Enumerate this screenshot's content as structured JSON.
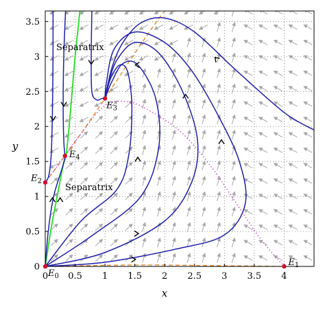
{
  "chart_data": {
    "type": "line",
    "title": "",
    "xlabel": "x",
    "ylabel": "y",
    "xlim": [
      0,
      4.5
    ],
    "ylim": [
      0,
      3.65
    ],
    "grid": true,
    "grid_style": "dotted",
    "xticks": [
      0,
      0.5,
      1,
      1.5,
      2,
      2.5,
      3,
      3.5,
      4
    ],
    "xtick_labels": [
      "0",
      "0.5",
      "1",
      "1.5",
      "2",
      "2.5",
      "3",
      "3.5",
      "4"
    ],
    "yticks": [
      0,
      0.5,
      1,
      1.5,
      2,
      2.5,
      3,
      3.5
    ],
    "ytick_labels": [
      "0",
      "0.5",
      "1",
      "1.5",
      "2",
      "2.5",
      "3",
      "3.5"
    ],
    "colors": {
      "trajectory": "#1f1fa8",
      "separatrix": "#33dd33",
      "nullcline_dashed": "#e08a2a",
      "nullcline_dotted": "#cc44cc",
      "vector_field": "#a8a8a8",
      "equilibrium": "#d0102a"
    },
    "equilibria": [
      {
        "name": "E",
        "sub": "0",
        "x": 0,
        "y": 0
      },
      {
        "name": "E",
        "sub": "1",
        "x": 4,
        "y": 0
      },
      {
        "name": "E",
        "sub": "2",
        "x": 0,
        "y": 1.2
      },
      {
        "name": "E",
        "sub": "3",
        "x": 1.0,
        "y": 2.4
      },
      {
        "name": "E",
        "sub": "4",
        "x": 0.33,
        "y": 1.58
      }
    ],
    "annotations": [
      "Separatrix",
      "Separatrix"
    ],
    "series": [
      {
        "role": "nullcline-dashed",
        "points": [
          [
            0,
            1.2
          ],
          [
            0.33,
            1.58
          ],
          [
            0.6,
            1.9
          ],
          [
            1.0,
            2.4
          ],
          [
            1.4,
            2.92
          ],
          [
            1.8,
            3.42
          ],
          [
            2.0,
            3.65
          ]
        ]
      },
      {
        "role": "nullcline-dotted",
        "points": [
          [
            0,
            1.2
          ],
          [
            0.3,
            1.55
          ],
          [
            0.6,
            1.9
          ],
          [
            1.0,
            2.3
          ],
          [
            1.4,
            2.35
          ],
          [
            1.8,
            2.2
          ],
          [
            2.3,
            1.9
          ],
          [
            2.8,
            1.4
          ],
          [
            3.2,
            0.9
          ],
          [
            3.6,
            0.4
          ],
          [
            4.0,
            0.0
          ]
        ]
      },
      {
        "role": "separatrix",
        "points": [
          [
            0,
            0
          ],
          [
            0.1,
            0.55
          ],
          [
            0.2,
            1.0
          ],
          [
            0.3,
            1.45
          ],
          [
            0.35,
            1.6
          ],
          [
            0.4,
            2.0
          ],
          [
            0.45,
            2.5
          ],
          [
            0.5,
            3.0
          ],
          [
            0.55,
            3.4
          ],
          [
            0.58,
            3.65
          ]
        ]
      },
      {
        "role": "axis-trajectory",
        "points": [
          [
            0,
            0
          ],
          [
            1.5,
            0.02
          ],
          [
            3.0,
            0.01
          ],
          [
            4.0,
            0.0
          ]
        ]
      },
      {
        "role": "trajectory-1",
        "points": [
          [
            0,
            0
          ],
          [
            1.0,
            0.06
          ],
          [
            2.2,
            0.25
          ],
          [
            3.0,
            0.45
          ],
          [
            3.35,
            0.9
          ],
          [
            3.25,
            1.5
          ],
          [
            2.9,
            2.15
          ],
          [
            2.45,
            2.8
          ],
          [
            2.0,
            3.2
          ],
          [
            1.5,
            3.35
          ],
          [
            1.15,
            3.1
          ],
          [
            1.02,
            2.6
          ],
          [
            1.0,
            2.4
          ]
        ]
      },
      {
        "role": "trajectory-2",
        "points": [
          [
            0,
            0
          ],
          [
            1.0,
            0.2
          ],
          [
            2.0,
            0.65
          ],
          [
            2.45,
            1.2
          ],
          [
            2.55,
            1.8
          ],
          [
            2.3,
            2.5
          ],
          [
            1.9,
            3.05
          ],
          [
            1.5,
            3.2
          ],
          [
            1.2,
            2.95
          ],
          [
            1.05,
            2.6
          ],
          [
            1.0,
            2.4
          ]
        ]
      },
      {
        "role": "trajectory-3",
        "points": [
          [
            0,
            0
          ],
          [
            0.8,
            0.45
          ],
          [
            1.6,
            1.0
          ],
          [
            1.9,
            1.7
          ],
          [
            1.85,
            2.4
          ],
          [
            1.55,
            2.88
          ],
          [
            1.3,
            2.9
          ],
          [
            1.12,
            2.65
          ],
          [
            1.0,
            2.4
          ]
        ]
      },
      {
        "role": "trajectory-4",
        "points": [
          [
            0,
            0
          ],
          [
            0.6,
            0.65
          ],
          [
            1.2,
            1.1
          ],
          [
            1.4,
            1.6
          ],
          [
            1.45,
            2.3
          ],
          [
            1.38,
            2.78
          ],
          [
            1.25,
            2.88
          ],
          [
            1.1,
            2.7
          ],
          [
            1.0,
            2.4
          ]
        ]
      },
      {
        "role": "trajectory-5",
        "points": [
          [
            4.5,
            1.95
          ],
          [
            4.0,
            2.2
          ],
          [
            3.2,
            2.8
          ],
          [
            2.5,
            3.35
          ],
          [
            2.0,
            3.55
          ],
          [
            1.6,
            3.48
          ],
          [
            1.3,
            3.2
          ],
          [
            1.12,
            2.85
          ],
          [
            1.0,
            2.4
          ]
        ]
      },
      {
        "role": "trajectory-6",
        "points": [
          [
            0.78,
            3.65
          ],
          [
            0.77,
            3.0
          ],
          [
            0.78,
            2.5
          ],
          [
            0.86,
            2.38
          ],
          [
            0.95,
            2.4
          ],
          [
            1.0,
            2.4
          ]
        ]
      },
      {
        "role": "trajectory-7",
        "points": [
          [
            0.34,
            3.65
          ],
          [
            0.31,
            3.0
          ],
          [
            0.3,
            2.3
          ],
          [
            0.31,
            1.8
          ],
          [
            0.33,
            1.58
          ]
        ]
      },
      {
        "role": "trajectory-8",
        "points": [
          [
            0.13,
            3.65
          ],
          [
            0.13,
            3.0
          ],
          [
            0.12,
            2.2
          ],
          [
            0.1,
            1.6
          ],
          [
            0.06,
            1.3
          ],
          [
            0,
            1.2
          ]
        ]
      },
      {
        "role": "trajectory-9",
        "points": [
          [
            0,
            0
          ],
          [
            0.05,
            0.5
          ],
          [
            0.14,
            1.0
          ],
          [
            0.3,
            1.45
          ],
          [
            0.33,
            1.58
          ]
        ]
      }
    ],
    "arrow_marks": [
      {
        "x": 0.77,
        "y": 2.9,
        "dir": "down"
      },
      {
        "x": 0.31,
        "y": 2.3,
        "dir": "down"
      },
      {
        "x": 0.13,
        "y": 2.1,
        "dir": "down"
      },
      {
        "x": 0.12,
        "y": 0.97,
        "dir": "up"
      },
      {
        "x": 0.25,
        "y": 0.97,
        "dir": "up"
      },
      {
        "x": 1.5,
        "y": 0.1,
        "dir": "right"
      },
      {
        "x": 1.55,
        "y": 0.47,
        "dir": "right"
      },
      {
        "x": 1.55,
        "y": 1.55,
        "dir": "up"
      },
      {
        "x": 2.35,
        "y": 2.45,
        "dir": "up"
      },
      {
        "x": 2.95,
        "y": 1.8,
        "dir": "up"
      },
      {
        "x": 1.52,
        "y": 2.88,
        "dir": "left"
      },
      {
        "x": 2.85,
        "y": 2.98,
        "dir": "up-left"
      }
    ]
  }
}
